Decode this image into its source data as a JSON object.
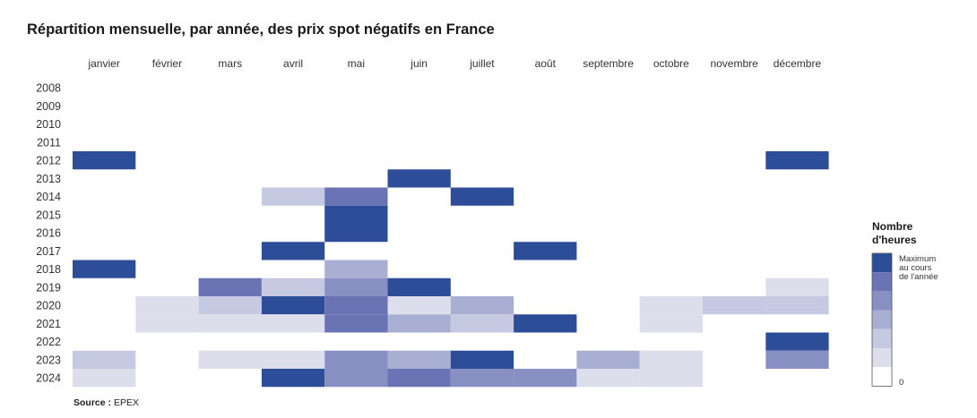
{
  "chart_data": {
    "type": "heatmap",
    "title": "Répartition mensuelle, par année, des prix spot négatifs en France",
    "source_label": "Source :",
    "source_value": "EPEX",
    "months": [
      "janvier",
      "février",
      "mars",
      "avril",
      "mai",
      "juin",
      "juillet",
      "août",
      "septembre",
      "octobre",
      "novembre",
      "décembre"
    ],
    "years": [
      "2008",
      "2009",
      "2010",
      "2011",
      "2012",
      "2013",
      "2014",
      "2015",
      "2016",
      "2017",
      "2018",
      "2019",
      "2020",
      "2021",
      "2022",
      "2023",
      "2024"
    ],
    "values_scale": "0 = aucune heure, 6 = maximum au cours de l'année",
    "values": [
      [
        0,
        0,
        0,
        0,
        0,
        0,
        0,
        0,
        0,
        0,
        0,
        0
      ],
      [
        0,
        0,
        0,
        0,
        0,
        0,
        0,
        0,
        0,
        0,
        0,
        0
      ],
      [
        0,
        0,
        0,
        0,
        0,
        0,
        0,
        0,
        0,
        0,
        0,
        0
      ],
      [
        0,
        0,
        0,
        0,
        0,
        0,
        0,
        0,
        0,
        0,
        0,
        0
      ],
      [
        6,
        0,
        0,
        0,
        0,
        0,
        0,
        0,
        0,
        0,
        0,
        6
      ],
      [
        0,
        0,
        0,
        0,
        0,
        6,
        0,
        0,
        0,
        0,
        0,
        0
      ],
      [
        0,
        0,
        0,
        2,
        5,
        0,
        6,
        0,
        0,
        0,
        0,
        0
      ],
      [
        0,
        0,
        0,
        0,
        6,
        0,
        0,
        0,
        0,
        0,
        0,
        0
      ],
      [
        0,
        0,
        0,
        0,
        6,
        0,
        0,
        0,
        0,
        0,
        0,
        0
      ],
      [
        0,
        0,
        0,
        6,
        0,
        0,
        0,
        6,
        0,
        0,
        0,
        0
      ],
      [
        6,
        0,
        0,
        0,
        3,
        0,
        0,
        0,
        0,
        0,
        0,
        0
      ],
      [
        0,
        0,
        5,
        2,
        4,
        6,
        0,
        0,
        0,
        0,
        0,
        1
      ],
      [
        0,
        1,
        2,
        6,
        5,
        1,
        3,
        0,
        0,
        1,
        2,
        2
      ],
      [
        0,
        1,
        1,
        1,
        5,
        3,
        2,
        6,
        0,
        1,
        0,
        0
      ],
      [
        0,
        0,
        0,
        0,
        0,
        0,
        0,
        0,
        0,
        0,
        0,
        6
      ],
      [
        2,
        0,
        1,
        1,
        4,
        3,
        6,
        0,
        3,
        1,
        0,
        4
      ],
      [
        1,
        0,
        0,
        6,
        4,
        5,
        4,
        4,
        1,
        1,
        0,
        0
      ]
    ],
    "legend": {
      "title_line1": "Nombre",
      "title_line2": "d'heures",
      "max_line1": "Maximum",
      "max_line2": "au cours",
      "max_line3": "de l'année",
      "min_label": "0"
    },
    "colors": [
      "#ffffff",
      "#eeeff7",
      "#dcdeec",
      "#c6c9e2",
      "#a9aed3",
      "#8890c3",
      "#6a73b4",
      "#2e4d99"
    ]
  }
}
